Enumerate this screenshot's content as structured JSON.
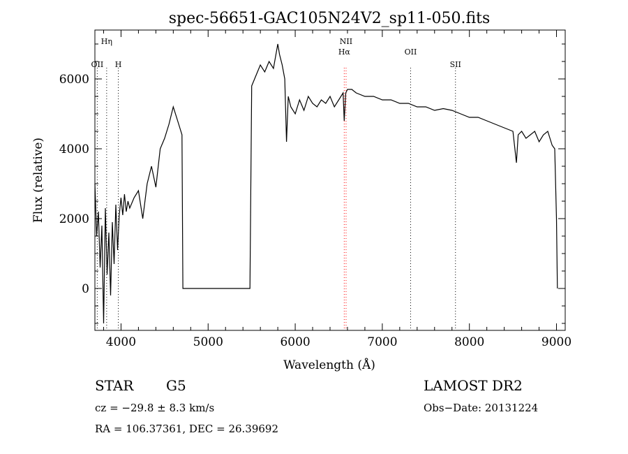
{
  "chart_data": {
    "type": "line",
    "title": "spec-56651-GAC105N24V2_sp11-050.fits",
    "xlabel": "Wavelength (Å)",
    "ylabel": "Flux (relative)",
    "xlim": [
      3700,
      9100
    ],
    "ylim": [
      -1200,
      7400
    ],
    "xticks": [
      4000,
      5000,
      6000,
      7000,
      8000,
      9000
    ],
    "yticks": [
      0,
      2000,
      4000,
      6000
    ],
    "grid": false,
    "lines": [
      {
        "label": "Hη",
        "x": 3835,
        "color": "#000000"
      },
      {
        "label": "OII",
        "x": 3727,
        "color": "#000000"
      },
      {
        "label": "H",
        "x": 3969,
        "color": "#000000"
      },
      {
        "label": "NII",
        "x": 6584,
        "color": "#ff0000"
      },
      {
        "label": "Hα",
        "x": 6563,
        "color": "#ff0000"
      },
      {
        "label": "OII",
        "x": 7325,
        "color": "#000000"
      },
      {
        "label": "SII",
        "x": 7840,
        "color": "#000000"
      }
    ],
    "series": [
      {
        "x": [
          3700,
          3720,
          3740,
          3760,
          3780,
          3800,
          3820,
          3840,
          3860,
          3880,
          3900,
          3920,
          3940,
          3960,
          3980,
          4000,
          4020,
          4040,
          4060,
          4080,
          4100,
          4150,
          4200,
          4250,
          4300,
          4350,
          4400,
          4450,
          4500,
          4550,
          4600,
          4650,
          4700,
          4710,
          4720,
          5450,
          5480,
          5500,
          5550,
          5600,
          5650,
          5700,
          5750,
          5800,
          5820,
          5850,
          5880,
          5900,
          5920,
          5950,
          6000,
          6050,
          6100,
          6150,
          6200,
          6250,
          6300,
          6350,
          6400,
          6450,
          6500,
          6550,
          6563,
          6580,
          6600,
          6650,
          6700,
          6800,
          6900,
          7000,
          7100,
          7200,
          7300,
          7400,
          7500,
          7600,
          7700,
          7800,
          7900,
          8000,
          8100,
          8200,
          8300,
          8400,
          8500,
          8540,
          8560,
          8600,
          8650,
          8700,
          8750,
          8800,
          8850,
          8900,
          8950,
          8980,
          9000,
          9010
        ],
        "y": [
          3000,
          1500,
          2200,
          600,
          1800,
          -1000,
          2300,
          400,
          1600,
          -200,
          1900,
          700,
          2400,
          1100,
          2100,
          2600,
          2100,
          2700,
          2200,
          2500,
          2300,
          2600,
          2800,
          2000,
          3000,
          3500,
          2900,
          4000,
          4300,
          4700,
          5200,
          4800,
          4400,
          0,
          0,
          0,
          0,
          5800,
          6100,
          6400,
          6200,
          6500,
          6300,
          7000,
          6700,
          6400,
          6000,
          4200,
          5500,
          5200,
          5000,
          5400,
          5100,
          5500,
          5300,
          5200,
          5400,
          5300,
          5500,
          5200,
          5400,
          5600,
          4800,
          5600,
          5700,
          5700,
          5600,
          5500,
          5500,
          5400,
          5400,
          5300,
          5300,
          5200,
          5200,
          5100,
          5150,
          5100,
          5000,
          4900,
          4900,
          4800,
          4700,
          4600,
          4500,
          3600,
          4400,
          4500,
          4300,
          4400,
          4500,
          4200,
          4400,
          4500,
          4100,
          4000,
          2000,
          0
        ]
      }
    ]
  },
  "info": {
    "class": "STAR",
    "subclass": "G5",
    "survey": "LAMOST DR2",
    "cz": "cz = −29.8 ± 8.3 km/s",
    "obs_date": "Obs−Date: 20131224",
    "coords": "RA = 106.37361, DEC =  26.39692"
  }
}
